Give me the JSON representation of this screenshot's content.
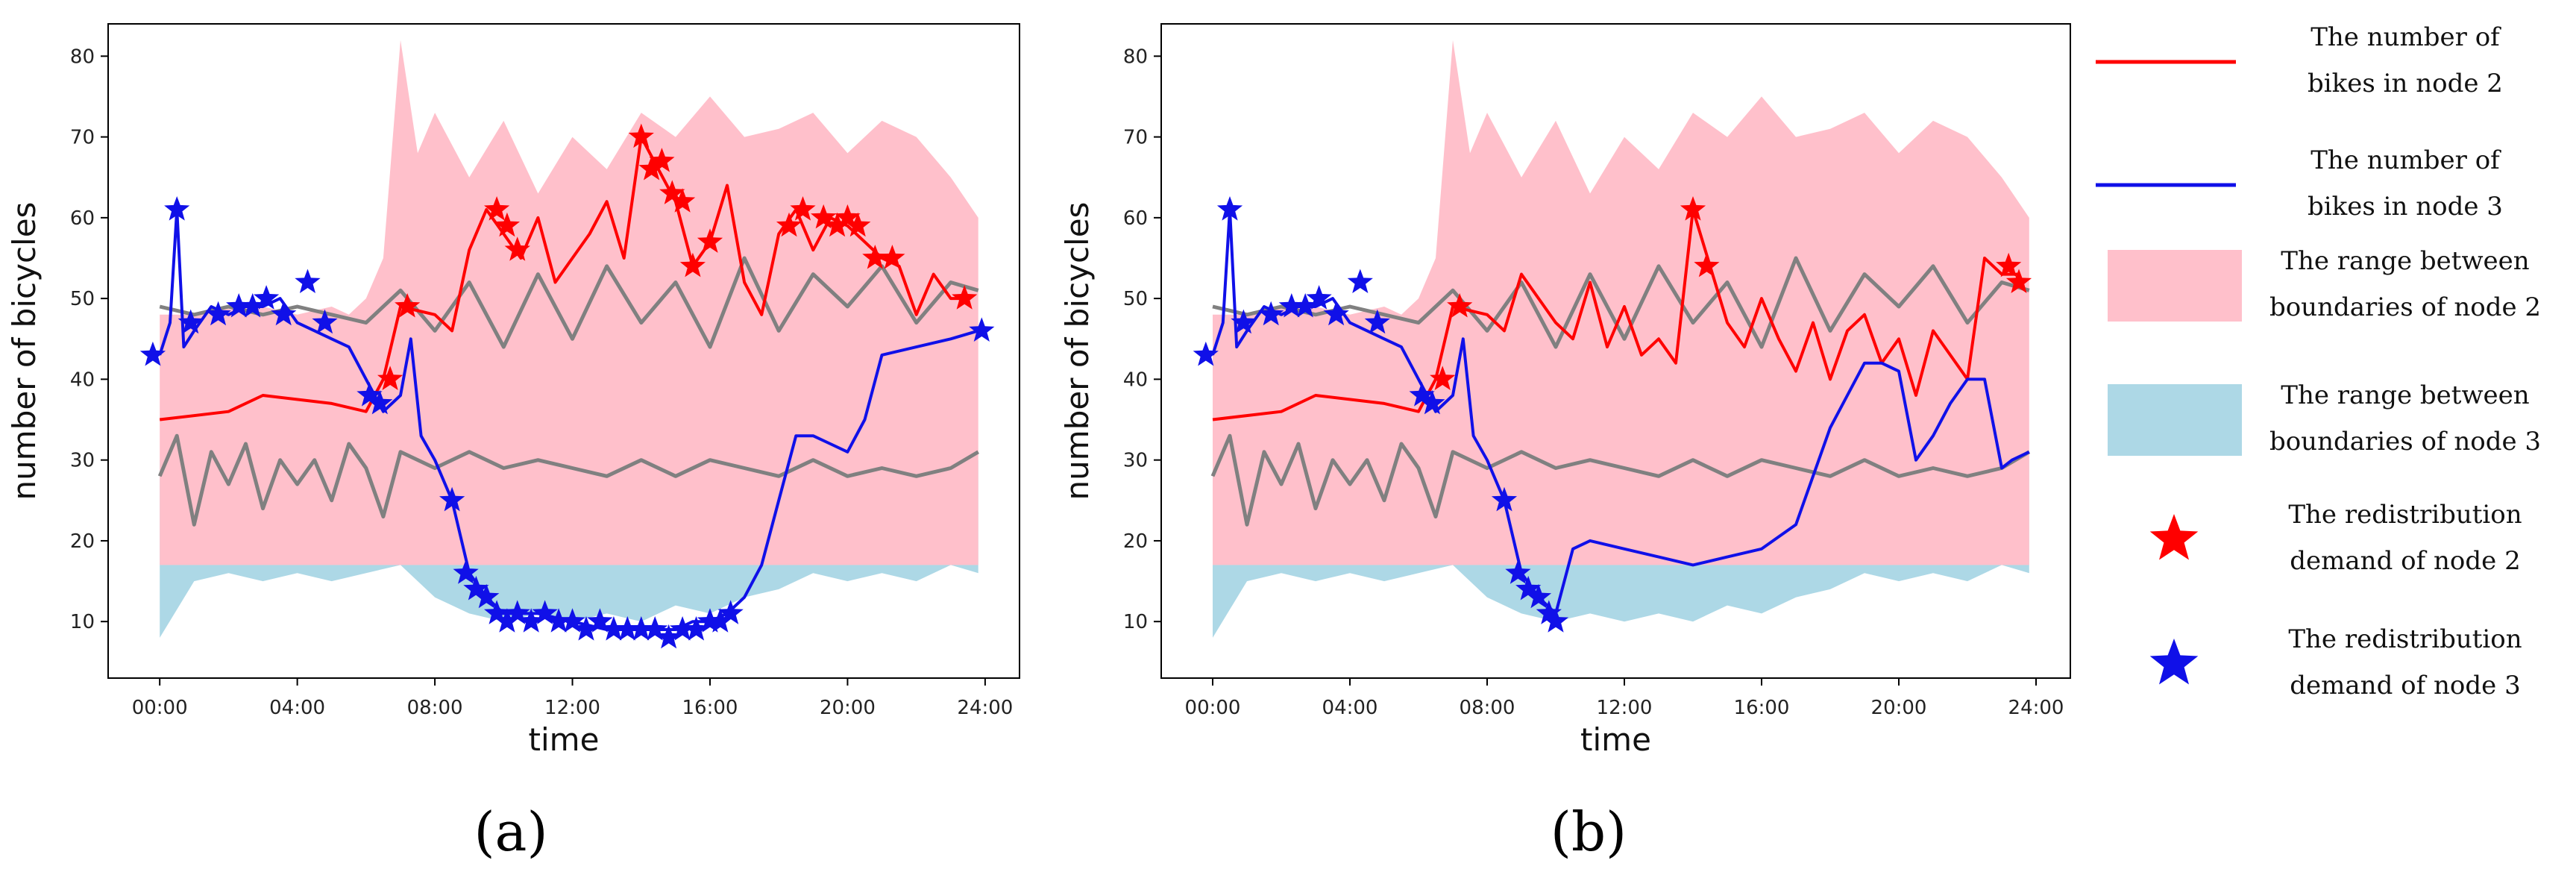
{
  "figure": {
    "panels": [
      {
        "id": "a",
        "label": "(a)"
      },
      {
        "id": "b",
        "label": "(b)"
      }
    ],
    "legend": {
      "entries": [
        {
          "key": "node2_line",
          "kind": "line",
          "color": "#ff0000",
          "lines": [
            "The number of",
            "bikes in node 2"
          ]
        },
        {
          "key": "node3_line",
          "kind": "line",
          "color": "#1010e8",
          "lines": [
            "The number of",
            "bikes in node 3"
          ]
        },
        {
          "key": "node2_band",
          "kind": "patch",
          "color": "#ffc0cb",
          "lines": [
            "The range between",
            "boundaries of node 2"
          ]
        },
        {
          "key": "node3_band",
          "kind": "patch",
          "color": "#add8e6",
          "lines": [
            "The range between",
            "boundaries of node 3"
          ]
        },
        {
          "key": "node2_star",
          "kind": "star",
          "color": "#ff0000",
          "lines": [
            "The redistribution",
            "demand of node 2"
          ]
        },
        {
          "key": "node3_star",
          "kind": "star",
          "color": "#1010e8",
          "lines": [
            "The redistribution",
            "demand of node 3"
          ]
        }
      ]
    }
  },
  "colors": {
    "node2": "#ff0000",
    "node3": "#1010e8",
    "band2": "#ffc0cb",
    "band3": "#add8e6",
    "boundary": "#808080"
  },
  "chart_data": [
    {
      "type": "line",
      "panel": "a",
      "xlabel": "time",
      "ylabel": "number of bicycles",
      "xticks": [
        "00:00",
        "04:00",
        "08:00",
        "12:00",
        "16:00",
        "20:00",
        "24:00"
      ],
      "yticks": [
        10,
        20,
        30,
        40,
        50,
        60,
        70,
        80
      ],
      "xlim": [
        -1.5,
        25
      ],
      "ylim": [
        3,
        84
      ],
      "grid": false,
      "series": [
        {
          "key": "node2_bikes",
          "x": [
            0,
            2,
            3,
            5,
            6,
            6.5,
            7,
            8,
            8.5,
            9,
            9.5,
            10,
            10.5,
            11,
            11.5,
            12,
            12.5,
            13,
            13.5,
            14,
            14.5,
            15,
            15.5,
            16,
            16.5,
            17,
            17.5,
            18,
            18.5,
            19,
            19.5,
            20,
            20.5,
            21,
            21.5,
            22,
            22.5,
            23,
            23.5
          ],
          "y": [
            35,
            36,
            38,
            37,
            36,
            40,
            49,
            48,
            46,
            56,
            61,
            58,
            55,
            60,
            52,
            55,
            58,
            62,
            55,
            70,
            66,
            62,
            54,
            57,
            64,
            52,
            48,
            58,
            61,
            56,
            60,
            59,
            57,
            55,
            54,
            48,
            53,
            50,
            50
          ]
        },
        {
          "key": "node3_bikes",
          "x": [
            0,
            0.3,
            0.5,
            0.7,
            1,
            1.5,
            2,
            2.5,
            3,
            3.5,
            4,
            4.5,
            5,
            5.5,
            6,
            6.5,
            7,
            7.3,
            7.6,
            8,
            8.5,
            9,
            9.5,
            10,
            11,
            12,
            13,
            14,
            15,
            15.5,
            16,
            16.5,
            17,
            17.5,
            18,
            18.5,
            19,
            19.5,
            20,
            20.5,
            21,
            22,
            23,
            23.8
          ],
          "y": [
            43,
            47,
            61,
            44,
            46,
            49,
            48,
            49,
            49,
            50,
            47,
            46,
            45,
            44,
            40,
            36,
            38,
            45,
            33,
            30,
            25,
            16,
            13,
            11,
            11,
            10,
            9,
            9,
            9,
            10,
            10,
            11,
            13,
            17,
            25,
            33,
            33,
            32,
            31,
            35,
            43,
            44,
            45,
            46
          ]
        },
        {
          "key": "node2_upper",
          "x": [
            0,
            1,
            2,
            3,
            4,
            5,
            5.5,
            6,
            6.5,
            7,
            7.5,
            8,
            9,
            10,
            11,
            12,
            13,
            14,
            15,
            16,
            17,
            18,
            19,
            20,
            21,
            22,
            23,
            23.8
          ],
          "y": [
            48,
            48,
            49,
            49,
            48,
            49,
            48,
            50,
            55,
            82,
            68,
            73,
            65,
            72,
            63,
            70,
            66,
            73,
            70,
            75,
            70,
            71,
            73,
            68,
            72,
            70,
            65,
            60
          ]
        },
        {
          "key": "node2_lower",
          "x": [
            0,
            23.8
          ],
          "y": [
            17,
            17
          ]
        },
        {
          "key": "node3_upper",
          "x": [
            0,
            23.8
          ],
          "y": [
            30,
            30
          ]
        },
        {
          "key": "node3_lower",
          "x": [
            0,
            1,
            2,
            3,
            4,
            5,
            6,
            7,
            8,
            9,
            10,
            11,
            12,
            13,
            14,
            15,
            16,
            17,
            18,
            19,
            20,
            21,
            22,
            23,
            23.8
          ],
          "y": [
            8,
            15,
            16,
            15,
            16,
            15,
            16,
            17,
            13,
            11,
            10,
            11,
            10,
            11,
            10,
            12,
            11,
            13,
            14,
            16,
            15,
            16,
            15,
            17,
            16
          ]
        },
        {
          "key": "upper_boundary",
          "x": [
            0,
            1,
            2,
            3,
            4,
            5,
            6,
            7,
            8,
            9,
            10,
            11,
            12,
            13,
            14,
            15,
            16,
            17,
            18,
            19,
            20,
            21,
            22,
            23,
            23.8
          ],
          "y": [
            49,
            48,
            49,
            48,
            49,
            48,
            47,
            51,
            46,
            52,
            44,
            53,
            45,
            54,
            47,
            52,
            44,
            55,
            46,
            53,
            49,
            54,
            47,
            52,
            51
          ]
        },
        {
          "key": "lower_boundary",
          "x": [
            0,
            0.5,
            1,
            1.5,
            2,
            2.5,
            3,
            3.5,
            4,
            4.5,
            5,
            5.5,
            6,
            6.5,
            7,
            8,
            9,
            10,
            11,
            12,
            13,
            14,
            15,
            16,
            17,
            18,
            19,
            20,
            21,
            22,
            23,
            23.8
          ],
          "y": [
            28,
            33,
            22,
            31,
            27,
            32,
            24,
            30,
            27,
            30,
            25,
            32,
            29,
            23,
            31,
            29,
            31,
            29,
            30,
            29,
            28,
            30,
            28,
            30,
            29,
            28,
            30,
            28,
            29,
            28,
            29,
            31
          ]
        }
      ],
      "redistribution_node2": {
        "x": [
          6.7,
          7.2,
          9.8,
          10.1,
          10.4,
          14,
          14.3,
          14.6,
          14.9,
          15.2,
          15.5,
          16,
          18.3,
          18.7,
          19.3,
          19.7,
          20,
          20.3,
          20.8,
          21.3,
          23.4
        ],
        "y": [
          40,
          49,
          61,
          59,
          56,
          70,
          66,
          67,
          63,
          62,
          54,
          57,
          59,
          61,
          60,
          59,
          60,
          59,
          55,
          55,
          50
        ]
      },
      "redistribution_node3": {
        "x": [
          -0.2,
          0.5,
          0.9,
          1.7,
          2.3,
          2.7,
          3.1,
          3.6,
          4.3,
          4.8,
          6.1,
          6.4,
          8.5,
          8.9,
          9.2,
          9.5,
          9.8,
          10.1,
          10.4,
          10.8,
          11.2,
          11.6,
          12,
          12.4,
          12.8,
          13.2,
          13.6,
          14,
          14.4,
          14.8,
          15.2,
          15.6,
          16,
          16.3,
          16.6,
          23.9
        ],
        "y": [
          43,
          61,
          47,
          48,
          49,
          49,
          50,
          48,
          52,
          47,
          38,
          37,
          25,
          16,
          14,
          13,
          11,
          10,
          11,
          10,
          11,
          10,
          10,
          9,
          10,
          9,
          9,
          9,
          9,
          8,
          9,
          9,
          10,
          10,
          11,
          46
        ]
      }
    },
    {
      "type": "line",
      "panel": "b",
      "xlabel": "time",
      "ylabel": "number of bicycles",
      "xticks": [
        "00:00",
        "04:00",
        "08:00",
        "12:00",
        "16:00",
        "20:00",
        "24:00"
      ],
      "yticks": [
        10,
        20,
        30,
        40,
        50,
        60,
        70,
        80
      ],
      "xlim": [
        -1.5,
        25
      ],
      "ylim": [
        3,
        84
      ],
      "grid": false,
      "series": [
        {
          "key": "node2_bikes",
          "x": [
            0,
            2,
            3,
            5,
            6,
            6.5,
            7,
            8,
            8.5,
            9,
            9.5,
            10,
            10.5,
            11,
            11.5,
            12,
            12.5,
            13,
            13.5,
            14,
            14.5,
            15,
            15.5,
            16,
            16.5,
            17,
            17.5,
            18,
            18.5,
            19,
            19.5,
            20,
            20.5,
            21,
            21.5,
            22,
            22.5,
            23,
            23.5
          ],
          "y": [
            35,
            36,
            38,
            37,
            36,
            40,
            49,
            48,
            46,
            53,
            50,
            47,
            45,
            52,
            44,
            49,
            43,
            45,
            42,
            61,
            54,
            47,
            44,
            50,
            45,
            41,
            47,
            40,
            46,
            48,
            42,
            45,
            38,
            46,
            43,
            40,
            55,
            53,
            53
          ]
        },
        {
          "key": "node3_bikes",
          "x": [
            0,
            0.3,
            0.5,
            0.7,
            1,
            1.5,
            2,
            2.5,
            3,
            3.5,
            4,
            4.5,
            5,
            5.5,
            6,
            6.5,
            7,
            7.3,
            7.6,
            8,
            8.5,
            9,
            9.5,
            10,
            10.5,
            11,
            12,
            13,
            14,
            15,
            16,
            17,
            17.5,
            18,
            18.5,
            19,
            19.5,
            20,
            20.5,
            21,
            21.5,
            22,
            22.5,
            23,
            23.3,
            23.8
          ],
          "y": [
            43,
            47,
            61,
            44,
            46,
            49,
            48,
            49,
            49,
            50,
            47,
            46,
            45,
            44,
            40,
            36,
            38,
            45,
            33,
            30,
            25,
            16,
            13,
            11,
            19,
            20,
            19,
            18,
            17,
            18,
            19,
            22,
            28,
            34,
            38,
            42,
            42,
            41,
            30,
            33,
            37,
            40,
            40,
            29,
            30,
            31
          ]
        },
        {
          "key": "node2_upper",
          "x": [
            0,
            1,
            2,
            3,
            4,
            5,
            5.5,
            6,
            6.5,
            7,
            7.5,
            8,
            9,
            10,
            11,
            12,
            13,
            14,
            15,
            16,
            17,
            18,
            19,
            20,
            21,
            22,
            23,
            23.8
          ],
          "y": [
            48,
            48,
            49,
            49,
            48,
            49,
            48,
            50,
            55,
            82,
            68,
            73,
            65,
            72,
            63,
            70,
            66,
            73,
            70,
            75,
            70,
            71,
            73,
            68,
            72,
            70,
            65,
            60
          ]
        },
        {
          "key": "node2_lower",
          "x": [
            0,
            23.8
          ],
          "y": [
            17,
            17
          ]
        },
        {
          "key": "node3_upper",
          "x": [
            0,
            23.8
          ],
          "y": [
            30,
            30
          ]
        },
        {
          "key": "node3_lower",
          "x": [
            0,
            1,
            2,
            3,
            4,
            5,
            6,
            7,
            8,
            9,
            10,
            11,
            12,
            13,
            14,
            15,
            16,
            17,
            18,
            19,
            20,
            21,
            22,
            23,
            23.8
          ],
          "y": [
            8,
            15,
            16,
            15,
            16,
            15,
            16,
            17,
            13,
            11,
            10,
            11,
            10,
            11,
            10,
            12,
            11,
            13,
            14,
            16,
            15,
            16,
            15,
            17,
            16
          ]
        },
        {
          "key": "upper_boundary",
          "x": [
            0,
            1,
            2,
            3,
            4,
            5,
            6,
            7,
            8,
            9,
            10,
            11,
            12,
            13,
            14,
            15,
            16,
            17,
            18,
            19,
            20,
            21,
            22,
            23,
            23.8
          ],
          "y": [
            49,
            48,
            49,
            48,
            49,
            48,
            47,
            51,
            46,
            52,
            44,
            53,
            45,
            54,
            47,
            52,
            44,
            55,
            46,
            53,
            49,
            54,
            47,
            52,
            51
          ]
        },
        {
          "key": "lower_boundary",
          "x": [
            0,
            0.5,
            1,
            1.5,
            2,
            2.5,
            3,
            3.5,
            4,
            4.5,
            5,
            5.5,
            6,
            6.5,
            7,
            8,
            9,
            10,
            11,
            12,
            13,
            14,
            15,
            16,
            17,
            18,
            19,
            20,
            21,
            22,
            23,
            23.8
          ],
          "y": [
            28,
            33,
            22,
            31,
            27,
            32,
            24,
            30,
            27,
            30,
            25,
            32,
            29,
            23,
            31,
            29,
            31,
            29,
            30,
            29,
            28,
            30,
            28,
            30,
            29,
            28,
            30,
            28,
            29,
            28,
            29,
            31
          ]
        }
      ],
      "redistribution_node2": {
        "x": [
          6.7,
          7.2,
          14,
          14.4,
          23.2,
          23.5
        ],
        "y": [
          40,
          49,
          61,
          54,
          54,
          52
        ]
      },
      "redistribution_node3": {
        "x": [
          -0.2,
          0.5,
          0.9,
          1.7,
          2.3,
          2.7,
          3.1,
          3.6,
          4.3,
          4.8,
          6.1,
          6.4,
          8.5,
          8.9,
          9.2,
          9.5,
          9.8,
          10.0
        ],
        "y": [
          43,
          61,
          47,
          48,
          49,
          49,
          50,
          48,
          52,
          47,
          38,
          37,
          25,
          16,
          14,
          13,
          11,
          10
        ]
      }
    }
  ]
}
